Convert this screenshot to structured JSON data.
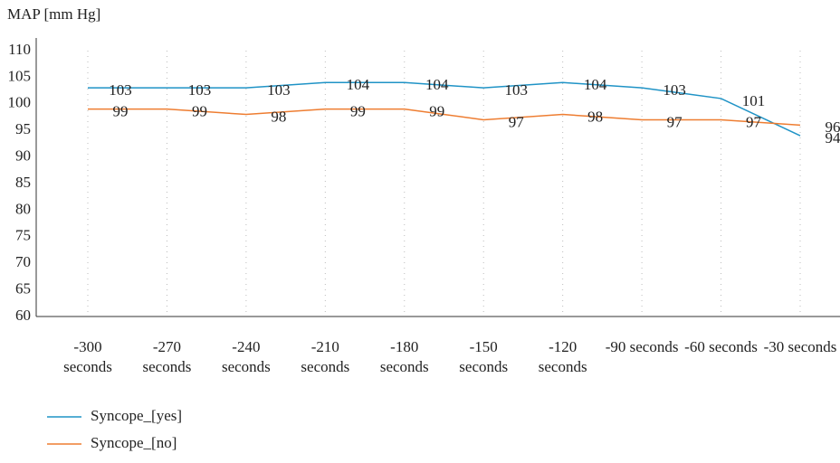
{
  "chart_data": {
    "type": "line",
    "y_label": "MAP [mm Hg]",
    "categories": [
      "-300 seconds",
      "-270 seconds",
      "-240 seconds",
      "-210 seconds",
      "-180 seconds",
      "-150 seconds",
      "-120 seconds",
      "-90 seconds",
      "-60 seconds",
      "-30 seconds"
    ],
    "series": [
      {
        "name": "Syncope_[yes]",
        "color": "#1f93c6",
        "values": [
          103,
          103,
          103,
          104,
          104,
          103,
          104,
          103,
          101,
          94
        ]
      },
      {
        "name": "Syncope_[no]",
        "color": "#ee7d31",
        "values": [
          99,
          99,
          98,
          99,
          99,
          97,
          98,
          97,
          97,
          96
        ]
      }
    ],
    "ylim": [
      60,
      110
    ],
    "yticks": [
      60,
      65,
      70,
      75,
      80,
      85,
      90,
      95,
      100,
      105,
      110
    ],
    "grid": true
  }
}
